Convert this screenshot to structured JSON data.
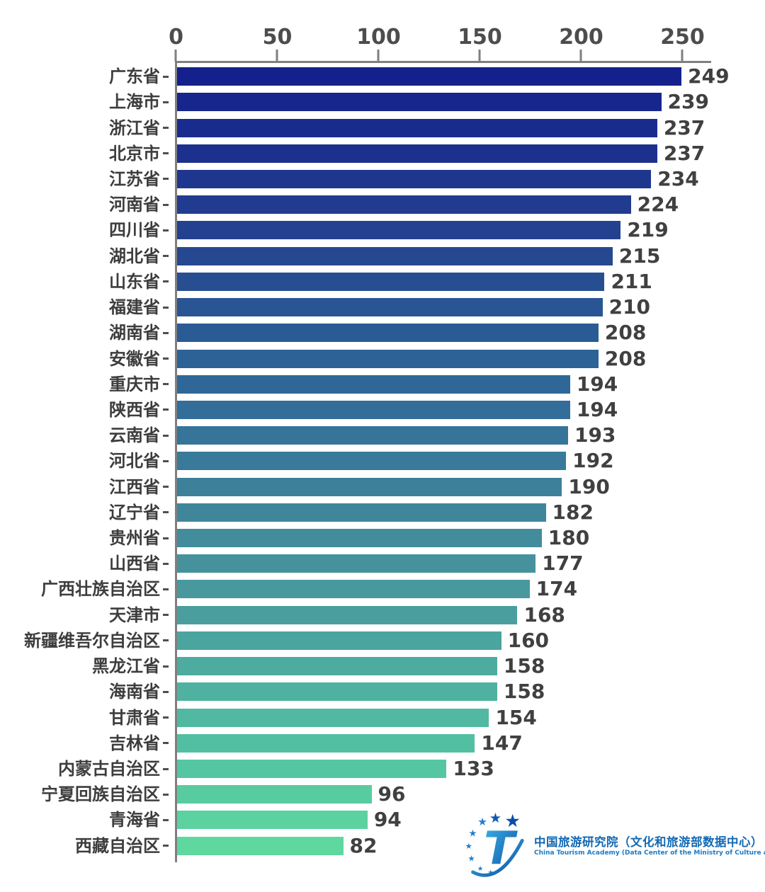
{
  "chart_data": {
    "type": "bar",
    "orientation": "horizontal",
    "title": "",
    "xlabel": "",
    "ylabel": "",
    "xlim": [
      0,
      260
    ],
    "x_ticks": [
      0,
      50,
      100,
      150,
      200,
      250
    ],
    "grid": false,
    "legend": false,
    "axis_position": "top",
    "categories": [
      "广东省",
      "上海市",
      "浙江省",
      "北京市",
      "江苏省",
      "河南省",
      "四川省",
      "湖北省",
      "山东省",
      "福建省",
      "湖南省",
      "安徽省",
      "重庆市",
      "陕西省",
      "云南省",
      "河北省",
      "江西省",
      "辽宁省",
      "贵州省",
      "山西省",
      "广西壮族自治区",
      "天津市",
      "新疆维吾尔自治区",
      "黑龙江省",
      "海南省",
      "甘肃省",
      "吉林省",
      "内蒙古自治区",
      "宁夏回族自治区",
      "青海省",
      "西藏自治区"
    ],
    "values": [
      249,
      239,
      237,
      237,
      234,
      224,
      219,
      215,
      211,
      210,
      208,
      208,
      194,
      194,
      193,
      192,
      190,
      182,
      180,
      177,
      174,
      168,
      160,
      158,
      158,
      154,
      147,
      133,
      96,
      94,
      82
    ],
    "bar_colors": [
      "#14218C",
      "#17268D",
      "#192C8D",
      "#1C318E",
      "#1F368E",
      "#213C8F",
      "#24418F",
      "#264891",
      "#284E92",
      "#2A5594",
      "#2B5B95",
      "#2D6297",
      "#2F6898",
      "#326E99",
      "#367499",
      "#397A9A",
      "#3C809A",
      "#3F869B",
      "#438C9B",
      "#46929C",
      "#48989D",
      "#4A9F9E",
      "#4BA59F",
      "#4DABA0",
      "#4FB2A1",
      "#51B9A1",
      "#53BFA2",
      "#55C6A2",
      "#58CCA1",
      "#5CD2A1",
      "#5FD8A0"
    ]
  },
  "logo": {
    "cn": "中国旅游研究院（文化和旅游部数据中心）",
    "en": "China Tourism Academy (Data Center of the Ministry of Culture and Tourism)",
    "t_letter": "T"
  },
  "colors": {
    "axis": "#7f7f7f",
    "tick_label": "#4d4d4d",
    "category_label": "#3d3d3d",
    "value_label": "#404040",
    "logo_blue": "#1268b3",
    "bar_top": "#14218C",
    "bar_bottom": "#5FD8A0"
  }
}
